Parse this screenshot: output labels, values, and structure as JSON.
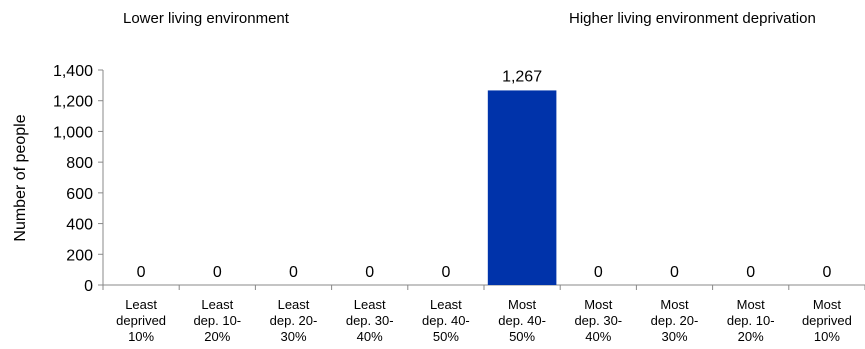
{
  "annotations": {
    "left": "Lower living environment",
    "right": "Higher living environment deprivation"
  },
  "chart_data": {
    "type": "bar",
    "title": "",
    "xlabel": "",
    "ylabel": "Number of people",
    "ylim": [
      0,
      1400
    ],
    "yticks": [
      "0",
      "200",
      "400",
      "600",
      "800",
      "1,000",
      "1,200",
      "1,400"
    ],
    "grid": false,
    "categories": [
      [
        "Least",
        "deprived",
        "10%"
      ],
      [
        "Least",
        "dep. 10-",
        "20%"
      ],
      [
        "Least",
        "dep. 20-",
        "30%"
      ],
      [
        "Least",
        "dep. 30-",
        "40%"
      ],
      [
        "Least",
        "dep. 40-",
        "50%"
      ],
      [
        "Most",
        "dep. 40-",
        "50%"
      ],
      [
        "Most",
        "dep. 30-",
        "40%"
      ],
      [
        "Most",
        "dep. 20-",
        "30%"
      ],
      [
        "Most",
        "dep. 10-",
        "20%"
      ],
      [
        "Most",
        "deprived",
        "10%"
      ]
    ],
    "values": [
      0,
      0,
      0,
      0,
      0,
      1267,
      0,
      0,
      0,
      0
    ],
    "data_labels": [
      "0",
      "0",
      "0",
      "0",
      "0",
      "1,267",
      "0",
      "0",
      "0",
      "0"
    ],
    "bar_color": "#0033aa"
  }
}
